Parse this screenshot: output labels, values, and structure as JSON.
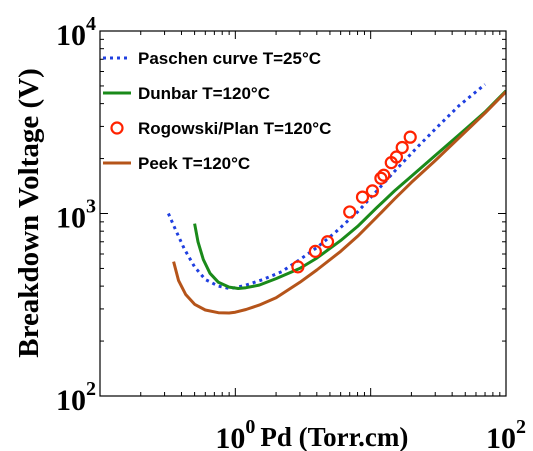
{
  "chart_data": {
    "type": "line",
    "title": "",
    "xlabel": "Pd (Torr.cm)",
    "ylabel": "Breakdown Voltage (V)",
    "xscale": "log",
    "yscale": "log",
    "xlim": [
      0.1,
      100
    ],
    "ylim": [
      100,
      10000
    ],
    "x_ticks": [
      {
        "value": 1,
        "base": "10",
        "exp": "0"
      },
      {
        "value": 100,
        "base": "10",
        "exp": "2"
      }
    ],
    "y_ticks": [
      {
        "value": 100,
        "base": "10",
        "exp": "2"
      },
      {
        "value": 1000,
        "base": "10",
        "exp": "3"
      },
      {
        "value": 10000,
        "base": "10",
        "exp": "4"
      }
    ],
    "grid": false,
    "legend_position": "top-left",
    "series": [
      {
        "name": "Paschen curve T=25°C",
        "style": "dotted",
        "color": "#1f3fe0",
        "x": [
          0.32,
          0.36,
          0.42,
          0.5,
          0.6,
          0.75,
          0.9,
          1.0,
          1.2,
          1.6,
          2.2,
          3,
          4,
          5.5,
          8,
          11,
          15,
          22,
          30,
          45,
          70
        ],
        "y": [
          1000,
          820,
          640,
          510,
          435,
          400,
          388,
          392,
          405,
          435,
          480,
          560,
          650,
          790,
          1020,
          1320,
          1700,
          2300,
          2900,
          3900,
          5100
        ]
      },
      {
        "name": "Dunbar T=120°C",
        "style": "solid",
        "color": "#1a8a1a",
        "x": [
          0.5,
          0.53,
          0.58,
          0.65,
          0.75,
          0.9,
          1.05,
          1.2,
          1.5,
          2,
          3,
          4,
          6,
          8,
          11,
          15,
          20,
          30,
          45,
          70,
          100
        ],
        "y": [
          880,
          700,
          560,
          470,
          420,
          395,
          388,
          392,
          405,
          440,
          500,
          570,
          710,
          850,
          1070,
          1330,
          1600,
          2080,
          2700,
          3600,
          4700
        ]
      },
      {
        "name": "Rogowski/Plan T=120°C",
        "style": "markers",
        "color": "#ff2200",
        "x": [
          2.9,
          3.9,
          4.8,
          7.0,
          8.7,
          10.3,
          11.9,
          12.5,
          14.2,
          15.5,
          17.1,
          19.6
        ],
        "y": [
          510,
          620,
          700,
          1020,
          1230,
          1330,
          1560,
          1620,
          1900,
          2040,
          2300,
          2620
        ]
      },
      {
        "name": "Peek T=120°C",
        "style": "solid",
        "color": "#b5541a",
        "x": [
          0.35,
          0.38,
          0.43,
          0.5,
          0.6,
          0.75,
          0.9,
          1.0,
          1.2,
          1.5,
          2,
          3,
          4,
          6,
          8,
          11,
          15,
          20,
          30,
          45,
          70,
          100
        ],
        "y": [
          545,
          430,
          360,
          318,
          296,
          286,
          285,
          288,
          298,
          315,
          345,
          420,
          490,
          620,
          750,
          950,
          1200,
          1480,
          1950,
          2600,
          3550,
          4650
        ]
      }
    ]
  }
}
